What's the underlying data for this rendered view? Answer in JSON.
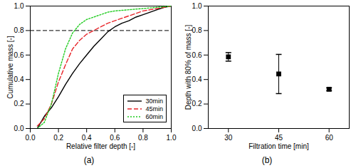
{
  "chart_data": [
    {
      "type": "line",
      "title": "(a)",
      "x_label": "Relative filter depth [-]",
      "y_label": "Cumulative mass [-]",
      "x": [
        0.05,
        0.1,
        0.15,
        0.2,
        0.25,
        0.3,
        0.35,
        0.4,
        0.45,
        0.5,
        0.55,
        0.6,
        0.65,
        0.7,
        0.75,
        0.8,
        0.85,
        0.9,
        0.95,
        1.0
      ],
      "series": [
        {
          "name": "30min",
          "color": "#000000",
          "line_style": "solid",
          "values": [
            0.0,
            0.1,
            0.17,
            0.26,
            0.36,
            0.45,
            0.53,
            0.6,
            0.67,
            0.73,
            0.79,
            0.83,
            0.86,
            0.88,
            0.91,
            0.93,
            0.95,
            0.97,
            0.99,
            1.0
          ]
        },
        {
          "name": "45min",
          "color": "#e8262b",
          "line_style": "dashed",
          "values": [
            0.02,
            0.08,
            0.2,
            0.38,
            0.52,
            0.65,
            0.72,
            0.77,
            0.8,
            0.83,
            0.86,
            0.88,
            0.9,
            0.92,
            0.94,
            0.96,
            0.97,
            0.98,
            0.99,
            1.0
          ]
        },
        {
          "name": "60min",
          "color": "#22cc22",
          "line_style": "dotted",
          "values": [
            0.0,
            0.05,
            0.2,
            0.45,
            0.65,
            0.78,
            0.85,
            0.89,
            0.91,
            0.93,
            0.95,
            0.96,
            0.965,
            0.97,
            0.975,
            0.98,
            0.985,
            0.99,
            0.995,
            1.0
          ]
        }
      ],
      "annotations": [
        {
          "type": "hline",
          "y": 0.8,
          "color": "#000000",
          "line_style": "dashed"
        }
      ],
      "xlim": [
        0,
        1
      ],
      "ylim": [
        0,
        1
      ],
      "xticks": [
        {
          "value": 0,
          "label": "0.0"
        },
        {
          "value": 0.2,
          "label": "0.2"
        },
        {
          "value": 0.4,
          "label": "0.4"
        },
        {
          "value": 0.6,
          "label": "0.6"
        },
        {
          "value": 0.8,
          "label": "0.8"
        },
        {
          "value": 1,
          "label": "1.0"
        }
      ],
      "yticks": [
        {
          "value": 0,
          "label": "0.0"
        },
        {
          "value": 0.2,
          "label": "0.2"
        },
        {
          "value": 0.4,
          "label": "0.4"
        },
        {
          "value": 0.6,
          "label": "0.6"
        },
        {
          "value": 0.8,
          "label": "0.8"
        },
        {
          "value": 1,
          "label": "1.0"
        }
      ],
      "legend": "lower right",
      "grid": false
    },
    {
      "type": "scatter",
      "title": "(b)",
      "x_label": "Filtration time [min]",
      "y_label": "Depth with 80% of mass [-]",
      "x": [
        30,
        45,
        60
      ],
      "values": [
        0.585,
        0.445,
        0.32
      ],
      "errors": [
        0.035,
        0.16,
        0.012
      ],
      "color": "#000000",
      "marker": "square",
      "xlim": [
        24,
        66
      ],
      "ylim": [
        0,
        1
      ],
      "xticks": [
        30,
        45,
        60
      ],
      "yticks": [
        {
          "value": 0,
          "label": "0.0"
        },
        {
          "value": 0.2,
          "label": "0.2"
        },
        {
          "value": 0.4,
          "label": "0.4"
        },
        {
          "value": 0.6,
          "label": "0.6"
        },
        {
          "value": 0.8,
          "label": "0.8"
        },
        {
          "value": 1,
          "label": "1.0"
        }
      ],
      "grid": false
    }
  ]
}
